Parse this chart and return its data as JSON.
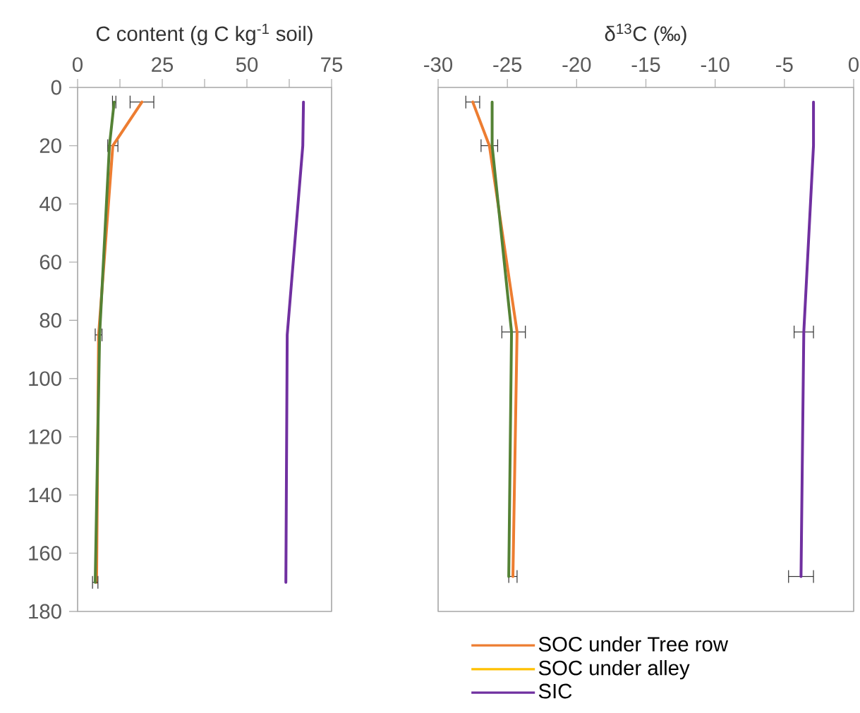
{
  "chart_data": [
    {
      "type": "line",
      "xlabel": "C content (g C kg$^{-1}$ soil)",
      "xlim": [
        0,
        75
      ],
      "xticks": [
        0,
        {
          "value": 12.5,
          "label": null
        },
        25,
        {
          "value": 37.5,
          "label": null
        },
        50,
        {
          "value": 62.5,
          "label": null
        },
        75
      ],
      "ylim": [
        180,
        0
      ],
      "yticks": [
        0,
        20,
        40,
        60,
        80,
        100,
        120,
        140,
        160,
        180
      ],
      "series": [
        {
          "color": "#ed7d31",
          "x": [
            19,
            10.4,
            6.2,
            5.6
          ],
          "values": [
            5,
            20,
            85,
            170
          ],
          "xerrors": [
            3.5,
            1.5,
            1,
            null
          ]
        },
        {
          "color": "#548235",
          "x": [
            10.8,
            9.4,
            6.5,
            5.2
          ],
          "values": [
            5,
            20,
            85,
            170
          ],
          "xerrors": [
            0.5,
            null,
            null,
            0.8
          ]
        },
        {
          "color": "#7030a0",
          "x": [
            66.7,
            66.5,
            61.9,
            61.5
          ],
          "values": [
            5,
            20,
            85,
            170
          ]
        }
      ]
    },
    {
      "type": "line",
      "xlabel": "δ$^{13}$C (‰)",
      "xlim": [
        -30,
        0
      ],
      "xticks": [
        -30,
        -25,
        -20,
        -15,
        -10,
        -5,
        0
      ],
      "ylim": [
        180,
        0
      ],
      "tick_labels": "x",
      "legend": "bottom",
      "series": [
        {
          "name": "SOC under Tree row",
          "color": "#ed7d31",
          "x": [
            -27.5,
            -26.3,
            -24.3,
            -24.6
          ],
          "values": [
            5,
            20,
            84,
            168
          ],
          "xerrors": [
            0.5,
            0.6,
            [
              -25.4,
              -23.7
            ],
            0.3
          ]
        },
        {
          "name": "SOC under alley",
          "color": "#ffc000",
          "x": [
            null,
            null,
            null,
            null
          ],
          "values": [
            null,
            null,
            null,
            null
          ]
        },
        {
          "name": "SIC",
          "color": "#7030a0",
          "x": [
            -2.9,
            -2.9,
            -3.6,
            -3.8
          ],
          "values": [
            5,
            20,
            84,
            168
          ],
          "xerrors": [
            null,
            null,
            0.7,
            0.9
          ]
        },
        {
          "color": "#548235",
          "x": [
            -26.1,
            -26.1,
            -24.7,
            -24.9
          ],
          "values": [
            5,
            20,
            84,
            168
          ],
          "xerrors": [
            null,
            null,
            null,
            null
          ]
        }
      ]
    }
  ]
}
